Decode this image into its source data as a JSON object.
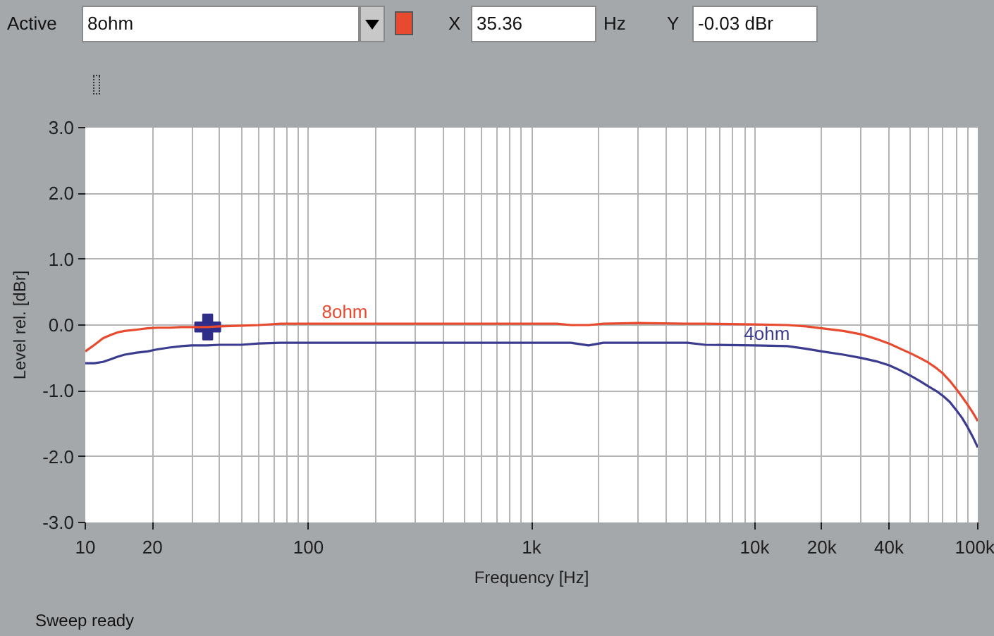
{
  "chart_data": {
    "type": "line",
    "xlabel": "Frequency [Hz]",
    "ylabel": "Level rel. [dBr]",
    "log": "x",
    "grid": true,
    "xlim": [
      10,
      100000
    ],
    "xticks": [
      10,
      20,
      100,
      {
        "value": 1000,
        "label": "1k"
      },
      {
        "value": 10000,
        "label": "10k"
      },
      {
        "value": 20000,
        "label": "20k"
      },
      {
        "value": 40000,
        "label": "40k"
      },
      {
        "value": 100000,
        "label": "100k"
      }
    ],
    "ylim": [
      -3,
      3
    ],
    "yticks": [
      {
        "value": -3,
        "label": "-3.0"
      },
      {
        "value": -2,
        "label": "-2.0"
      },
      {
        "value": -1,
        "label": "-1.0"
      },
      {
        "value": 0,
        "label": "0.0"
      },
      {
        "value": 1,
        "label": "1.0"
      },
      {
        "value": 2,
        "label": "2.0"
      },
      {
        "value": 3,
        "label": "3.0"
      }
    ],
    "x": [
      10,
      11,
      12,
      13,
      14,
      15,
      17,
      19,
      21,
      24,
      27,
      30,
      35,
      40,
      50,
      60,
      75,
      90,
      120,
      200,
      400,
      700,
      1000,
      1300,
      1500,
      1800,
      2100,
      3000,
      5000,
      6000,
      10000,
      14000,
      17000,
      20000,
      25000,
      30000,
      35000,
      40000,
      45000,
      50000,
      55000,
      60000,
      65000,
      70000,
      75000,
      80000,
      85000,
      90000,
      95000,
      100000
    ],
    "series": [
      {
        "name": "8ohm",
        "color": "#e84a2f",
        "values": [
          -0.4,
          -0.3,
          -0.2,
          -0.15,
          -0.11,
          -0.09,
          -0.07,
          -0.05,
          -0.04,
          -0.04,
          -0.03,
          -0.03,
          -0.03,
          -0.02,
          -0.01,
          0.0,
          0.02,
          0.02,
          0.02,
          0.02,
          0.02,
          0.02,
          0.02,
          0.02,
          0.0,
          0.0,
          0.02,
          0.03,
          0.02,
          0.02,
          0.01,
          0.0,
          -0.02,
          -0.05,
          -0.09,
          -0.14,
          -0.21,
          -0.28,
          -0.36,
          -0.43,
          -0.5,
          -0.57,
          -0.65,
          -0.74,
          -0.85,
          -0.97,
          -1.09,
          -1.21,
          -1.33,
          -1.46
        ]
      },
      {
        "name": "4ohm",
        "color": "#3b3b8f",
        "values": [
          -0.58,
          -0.58,
          -0.56,
          -0.52,
          -0.48,
          -0.45,
          -0.42,
          -0.4,
          -0.37,
          -0.34,
          -0.32,
          -0.31,
          -0.31,
          -0.3,
          -0.3,
          -0.28,
          -0.27,
          -0.27,
          -0.27,
          -0.27,
          -0.27,
          -0.27,
          -0.27,
          -0.27,
          -0.27,
          -0.31,
          -0.27,
          -0.27,
          -0.27,
          -0.3,
          -0.31,
          -0.32,
          -0.36,
          -0.4,
          -0.45,
          -0.5,
          -0.55,
          -0.61,
          -0.69,
          -0.77,
          -0.85,
          -0.93,
          -1.0,
          -1.08,
          -1.17,
          -1.29,
          -1.41,
          -1.55,
          -1.7,
          -1.86
        ]
      },
      {
        "type": "scatter",
        "marker": "cross",
        "color": "#2e2e8a",
        "x": [
          35.36
        ],
        "values": [
          -0.03
        ]
      }
    ],
    "annotations": [
      "Active",
      "8ohm",
      "X",
      "35.36",
      "Hz",
      "Y",
      "-0.03 dBr",
      "Sweep ready"
    ]
  }
}
